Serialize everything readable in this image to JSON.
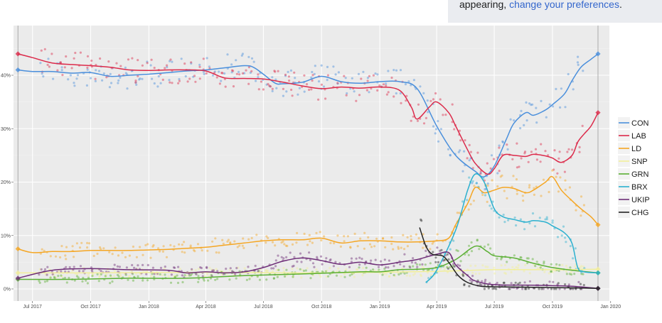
{
  "notice": {
    "prefix": "appearing,",
    "link": "change your preferences",
    "suffix": "."
  },
  "chart_data": {
    "type": "line",
    "title": "",
    "xlabel": "",
    "ylabel": "",
    "ylim": [
      0,
      48
    ],
    "xlim": [
      "2017-06-01",
      "2019-12-30"
    ],
    "grid": true,
    "legend_position": "right",
    "x_ticks": [
      {
        "label": "Jul 2017",
        "date": "2017-07-01"
      },
      {
        "label": "Oct 2017",
        "date": "2017-10-01"
      },
      {
        "label": "Jan 2018",
        "date": "2018-01-01"
      },
      {
        "label": "Apr 2018",
        "date": "2018-04-01"
      },
      {
        "label": "Jul 2018",
        "date": "2018-07-01"
      },
      {
        "label": "Oct 2018",
        "date": "2018-10-01"
      },
      {
        "label": "Jan 2019",
        "date": "2019-01-01"
      },
      {
        "label": "Apr 2019",
        "date": "2019-04-01"
      },
      {
        "label": "Jul 2019",
        "date": "2019-07-01"
      },
      {
        "label": "Oct 2019",
        "date": "2019-10-01"
      },
      {
        "label": "Jan 2020",
        "date": "2020-01-01"
      }
    ],
    "y_ticks": [
      {
        "label": "0%",
        "value": 0
      },
      {
        "label": "10%",
        "value": 10
      },
      {
        "label": "20%",
        "value": 20
      },
      {
        "label": "30%",
        "value": 30
      },
      {
        "label": "40%",
        "value": 40
      }
    ],
    "reference_dates": [
      "2017-06-08",
      "2019-12-12"
    ],
    "series": [
      {
        "name": "CON",
        "color": "#4a8fdc",
        "points": [
          [
            "2017-06-08",
            41
          ],
          [
            "2017-07-01",
            40.7
          ],
          [
            "2017-08-01",
            40.7
          ],
          [
            "2017-09-01",
            40.4
          ],
          [
            "2017-10-01",
            40.5
          ],
          [
            "2017-11-01",
            39.8
          ],
          [
            "2017-12-01",
            40
          ],
          [
            "2018-01-01",
            40.2
          ],
          [
            "2018-02-01",
            40.5
          ],
          [
            "2018-03-01",
            40.8
          ],
          [
            "2018-04-01",
            41
          ],
          [
            "2018-05-01",
            41.4
          ],
          [
            "2018-06-01",
            41.8
          ],
          [
            "2018-06-15",
            41.5
          ],
          [
            "2018-07-01",
            40.2
          ],
          [
            "2018-07-20",
            38.5
          ],
          [
            "2018-08-01",
            38.4
          ],
          [
            "2018-09-01",
            38.7
          ],
          [
            "2018-10-01",
            39.8
          ],
          [
            "2018-11-01",
            38.8
          ],
          [
            "2018-12-01",
            38.5
          ],
          [
            "2019-01-01",
            38.8
          ],
          [
            "2019-02-01",
            38.8
          ],
          [
            "2019-03-01",
            37.5
          ],
          [
            "2019-04-01",
            30.5
          ],
          [
            "2019-05-01",
            25
          ],
          [
            "2019-06-01",
            22
          ],
          [
            "2019-06-15",
            21
          ],
          [
            "2019-07-01",
            23
          ],
          [
            "2019-07-20",
            28
          ],
          [
            "2019-08-01",
            31
          ],
          [
            "2019-08-20",
            33
          ],
          [
            "2019-09-01",
            32.5
          ],
          [
            "2019-09-20",
            33.5
          ],
          [
            "2019-10-01",
            34.5
          ],
          [
            "2019-10-20",
            36.5
          ],
          [
            "2019-11-01",
            39
          ],
          [
            "2019-11-15",
            41.5
          ],
          [
            "2019-12-01",
            43
          ],
          [
            "2019-12-12",
            44
          ]
        ]
      },
      {
        "name": "LAB",
        "color": "#dc2a4a",
        "points": [
          [
            "2017-06-08",
            44
          ],
          [
            "2017-07-01",
            43.3
          ],
          [
            "2017-08-01",
            42.3
          ],
          [
            "2017-09-01",
            42
          ],
          [
            "2017-10-01",
            41.8
          ],
          [
            "2017-11-01",
            41.5
          ],
          [
            "2017-12-01",
            41
          ],
          [
            "2018-01-01",
            40.9
          ],
          [
            "2018-02-01",
            41
          ],
          [
            "2018-03-01",
            41
          ],
          [
            "2018-04-01",
            40.8
          ],
          [
            "2018-05-01",
            39.5
          ],
          [
            "2018-06-01",
            39.4
          ],
          [
            "2018-07-01",
            39.3
          ],
          [
            "2018-08-01",
            38.7
          ],
          [
            "2018-09-01",
            38
          ],
          [
            "2018-10-01",
            37.5
          ],
          [
            "2018-11-01",
            37.8
          ],
          [
            "2018-12-01",
            37.6
          ],
          [
            "2019-01-01",
            37.8
          ],
          [
            "2019-02-01",
            37.2
          ],
          [
            "2019-02-20",
            34
          ],
          [
            "2019-03-01",
            31.8
          ],
          [
            "2019-03-20",
            34
          ],
          [
            "2019-04-01",
            35
          ],
          [
            "2019-04-20",
            33
          ],
          [
            "2019-05-01",
            30.5
          ],
          [
            "2019-05-20",
            26
          ],
          [
            "2019-06-01",
            23.5
          ],
          [
            "2019-06-20",
            21.5
          ],
          [
            "2019-07-01",
            22.5
          ],
          [
            "2019-07-15",
            25
          ],
          [
            "2019-08-01",
            25
          ],
          [
            "2019-08-20",
            24.8
          ],
          [
            "2019-09-01",
            25.2
          ],
          [
            "2019-09-20",
            24.9
          ],
          [
            "2019-10-01",
            24.5
          ],
          [
            "2019-10-15",
            23.7
          ],
          [
            "2019-11-01",
            25
          ],
          [
            "2019-11-10",
            27.5
          ],
          [
            "2019-11-20",
            29
          ],
          [
            "2019-12-01",
            30.5
          ],
          [
            "2019-12-12",
            33
          ]
        ]
      },
      {
        "name": "LD",
        "color": "#f5a623",
        "points": [
          [
            "2017-06-08",
            7.5
          ],
          [
            "2017-07-01",
            6.8
          ],
          [
            "2017-08-01",
            7
          ],
          [
            "2017-09-01",
            7
          ],
          [
            "2017-10-01",
            7.2
          ],
          [
            "2017-11-01",
            7.2
          ],
          [
            "2017-12-01",
            7.2
          ],
          [
            "2018-01-01",
            7.3
          ],
          [
            "2018-02-01",
            7.4
          ],
          [
            "2018-03-01",
            7.6
          ],
          [
            "2018-04-01",
            7.8
          ],
          [
            "2018-05-01",
            8.2
          ],
          [
            "2018-06-01",
            8.6
          ],
          [
            "2018-07-01",
            9
          ],
          [
            "2018-08-01",
            9.2
          ],
          [
            "2018-09-01",
            9.2
          ],
          [
            "2018-10-01",
            9.5
          ],
          [
            "2018-11-01",
            8.6
          ],
          [
            "2018-12-01",
            9
          ],
          [
            "2019-01-01",
            9
          ],
          [
            "2019-02-01",
            8.8
          ],
          [
            "2019-03-01",
            8.8
          ],
          [
            "2019-04-01",
            9
          ],
          [
            "2019-04-20",
            9.5
          ],
          [
            "2019-05-01",
            12
          ],
          [
            "2019-05-20",
            16
          ],
          [
            "2019-06-01",
            19
          ],
          [
            "2019-06-15",
            18
          ],
          [
            "2019-07-01",
            18.5
          ],
          [
            "2019-07-15",
            19
          ],
          [
            "2019-08-01",
            18.8
          ],
          [
            "2019-08-20",
            18
          ],
          [
            "2019-09-01",
            18.5
          ],
          [
            "2019-09-20",
            20
          ],
          [
            "2019-10-01",
            21
          ],
          [
            "2019-10-15",
            18.5
          ],
          [
            "2019-11-01",
            16.5
          ],
          [
            "2019-11-15",
            15
          ],
          [
            "2019-12-01",
            13.5
          ],
          [
            "2019-12-12",
            12
          ]
        ]
      },
      {
        "name": "SNP",
        "color": "#f2ef9a",
        "points": [
          [
            "2017-06-08",
            3
          ],
          [
            "2017-10-01",
            3
          ],
          [
            "2018-04-01",
            3.1
          ],
          [
            "2018-10-01",
            3
          ],
          [
            "2019-04-01",
            3.3
          ],
          [
            "2019-07-01",
            3.6
          ],
          [
            "2019-10-01",
            3.6
          ],
          [
            "2019-12-12",
            3.7
          ]
        ]
      },
      {
        "name": "GRN",
        "color": "#5aaf33",
        "points": [
          [
            "2017-06-08",
            1.8
          ],
          [
            "2017-09-01",
            1.8
          ],
          [
            "2017-12-01",
            2
          ],
          [
            "2018-03-01",
            2
          ],
          [
            "2018-06-01",
            2.5
          ],
          [
            "2018-09-01",
            2.8
          ],
          [
            "2018-12-01",
            3.2
          ],
          [
            "2019-01-01",
            3.2
          ],
          [
            "2019-02-01",
            3.6
          ],
          [
            "2019-03-01",
            3.7
          ],
          [
            "2019-04-01",
            4
          ],
          [
            "2019-05-01",
            5.5
          ],
          [
            "2019-06-01",
            8
          ],
          [
            "2019-06-20",
            7
          ],
          [
            "2019-07-01",
            6.2
          ],
          [
            "2019-08-01",
            5.8
          ],
          [
            "2019-09-01",
            4.8
          ],
          [
            "2019-10-01",
            4
          ],
          [
            "2019-11-01",
            3.5
          ],
          [
            "2019-12-12",
            3
          ]
        ]
      },
      {
        "name": "BRX",
        "color": "#2ab0cf",
        "points": [
          [
            "2019-03-15",
            1.2
          ],
          [
            "2019-04-01",
            3.5
          ],
          [
            "2019-05-01",
            11
          ],
          [
            "2019-05-20",
            18.5
          ],
          [
            "2019-06-01",
            21.5
          ],
          [
            "2019-06-15",
            20
          ],
          [
            "2019-07-01",
            15
          ],
          [
            "2019-07-15",
            13.5
          ],
          [
            "2019-08-01",
            13
          ],
          [
            "2019-08-20",
            12.5
          ],
          [
            "2019-09-01",
            12.8
          ],
          [
            "2019-09-20",
            12.5
          ],
          [
            "2019-10-01",
            11.8
          ],
          [
            "2019-10-20",
            10.5
          ],
          [
            "2019-11-01",
            8.5
          ],
          [
            "2019-11-10",
            4
          ],
          [
            "2019-11-20",
            3.2
          ],
          [
            "2019-12-12",
            3
          ]
        ]
      },
      {
        "name": "UKIP",
        "color": "#6e2e78",
        "points": [
          [
            "2017-06-08",
            2
          ],
          [
            "2017-08-01",
            3.5
          ],
          [
            "2017-10-01",
            3.8
          ],
          [
            "2017-12-01",
            3.6
          ],
          [
            "2018-02-01",
            3.5
          ],
          [
            "2018-03-01",
            3
          ],
          [
            "2018-04-01",
            3.2
          ],
          [
            "2018-05-01",
            3
          ],
          [
            "2018-06-01",
            3.2
          ],
          [
            "2018-07-01",
            4
          ],
          [
            "2018-08-01",
            5.2
          ],
          [
            "2018-09-01",
            5.8
          ],
          [
            "2018-10-01",
            5.3
          ],
          [
            "2018-11-01",
            4.6
          ],
          [
            "2018-12-01",
            5
          ],
          [
            "2019-01-01",
            4.5
          ],
          [
            "2019-02-01",
            5
          ],
          [
            "2019-03-01",
            5.5
          ],
          [
            "2019-04-01",
            6.5
          ],
          [
            "2019-04-20",
            6.8
          ],
          [
            "2019-05-01",
            4.5
          ],
          [
            "2019-05-20",
            2.5
          ],
          [
            "2019-06-01",
            1.5
          ],
          [
            "2019-07-01",
            0.8
          ],
          [
            "2019-09-01",
            0.7
          ],
          [
            "2019-11-01",
            0.5
          ],
          [
            "2019-12-12",
            0.1
          ]
        ]
      },
      {
        "name": "CHG",
        "color": "#222222",
        "points": [
          [
            "2019-03-05",
            11.5
          ],
          [
            "2019-03-15",
            8
          ],
          [
            "2019-03-25",
            6.5
          ],
          [
            "2019-04-10",
            6.2
          ],
          [
            "2019-04-20",
            5
          ],
          [
            "2019-05-05",
            2.5
          ],
          [
            "2019-05-20",
            1.2
          ],
          [
            "2019-06-10",
            0.5
          ],
          [
            "2019-07-01",
            0.4
          ],
          [
            "2019-09-01",
            0.3
          ],
          [
            "2019-11-01",
            0.2
          ],
          [
            "2019-12-12",
            0.1
          ]
        ]
      }
    ]
  }
}
